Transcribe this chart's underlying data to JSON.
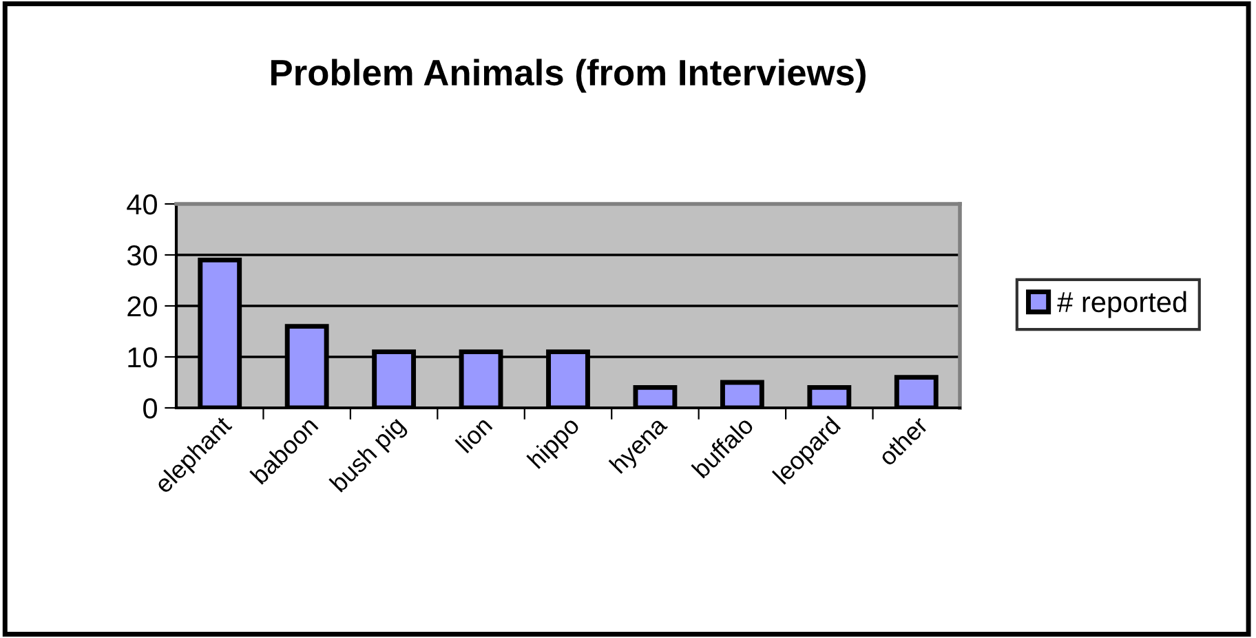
{
  "chart_data": {
    "type": "bar",
    "title": "Problem Animals (from Interviews)",
    "categories": [
      "elephant",
      "baboon",
      "bush pig",
      "lion",
      "hippo",
      "hyena",
      "buffalo",
      "leopard",
      "other"
    ],
    "series": [
      {
        "name": "# reported",
        "color": "#9999ff",
        "values": [
          29,
          16,
          11,
          11,
          11,
          4,
          5,
          4,
          6
        ]
      }
    ],
    "ylim": [
      0,
      40
    ],
    "yticks": [
      0,
      10,
      20,
      30,
      40
    ],
    "grid": "y",
    "legend": "right"
  }
}
